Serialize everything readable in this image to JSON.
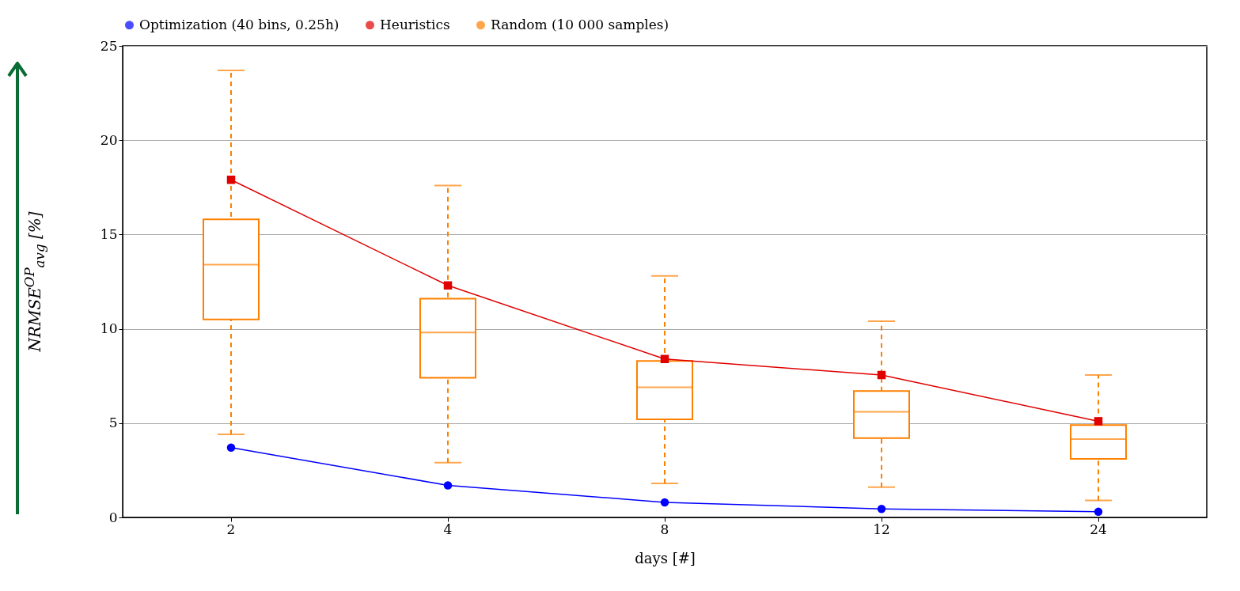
{
  "chart_data": {
    "type": "line",
    "xlabel": "days [#]",
    "ylabel": "NRMSE$^{OP}$$_{avg}$ [%]",
    "categories": [
      "2",
      "4",
      "8",
      "12",
      "24"
    ],
    "ylim": [
      0,
      25
    ],
    "yticks": [
      0,
      5,
      10,
      15,
      20,
      25
    ],
    "grid": "y",
    "legend": "top",
    "series": [
      {
        "name": "Optimization (40 bins, 0.25h)",
        "color": "#0000ff",
        "marker": "circle",
        "values": [
          3.7,
          1.7,
          0.8,
          0.45,
          0.3
        ]
      },
      {
        "name": "Heuristics",
        "color": "#e00000",
        "marker": "square",
        "values": [
          17.9,
          12.3,
          8.4,
          7.55,
          5.1
        ]
      },
      {
        "name": "Random (10 000 samples)",
        "type": "box",
        "color": "#ff8000",
        "line_style": "dashed",
        "boxes": [
          {
            "low": 4.4,
            "q1": 10.5,
            "median": 13.4,
            "q3": 15.8,
            "high": 23.7
          },
          {
            "low": 2.9,
            "q1": 7.4,
            "median": 9.8,
            "q3": 11.6,
            "high": 17.6
          },
          {
            "low": 1.8,
            "q1": 5.2,
            "median": 6.9,
            "q3": 8.3,
            "high": 12.8
          },
          {
            "low": 1.6,
            "q1": 4.2,
            "median": 5.6,
            "q3": 6.7,
            "high": 10.4
          },
          {
            "low": 0.9,
            "q1": 3.1,
            "median": 4.15,
            "q3": 4.9,
            "high": 7.55
          }
        ]
      }
    ]
  }
}
